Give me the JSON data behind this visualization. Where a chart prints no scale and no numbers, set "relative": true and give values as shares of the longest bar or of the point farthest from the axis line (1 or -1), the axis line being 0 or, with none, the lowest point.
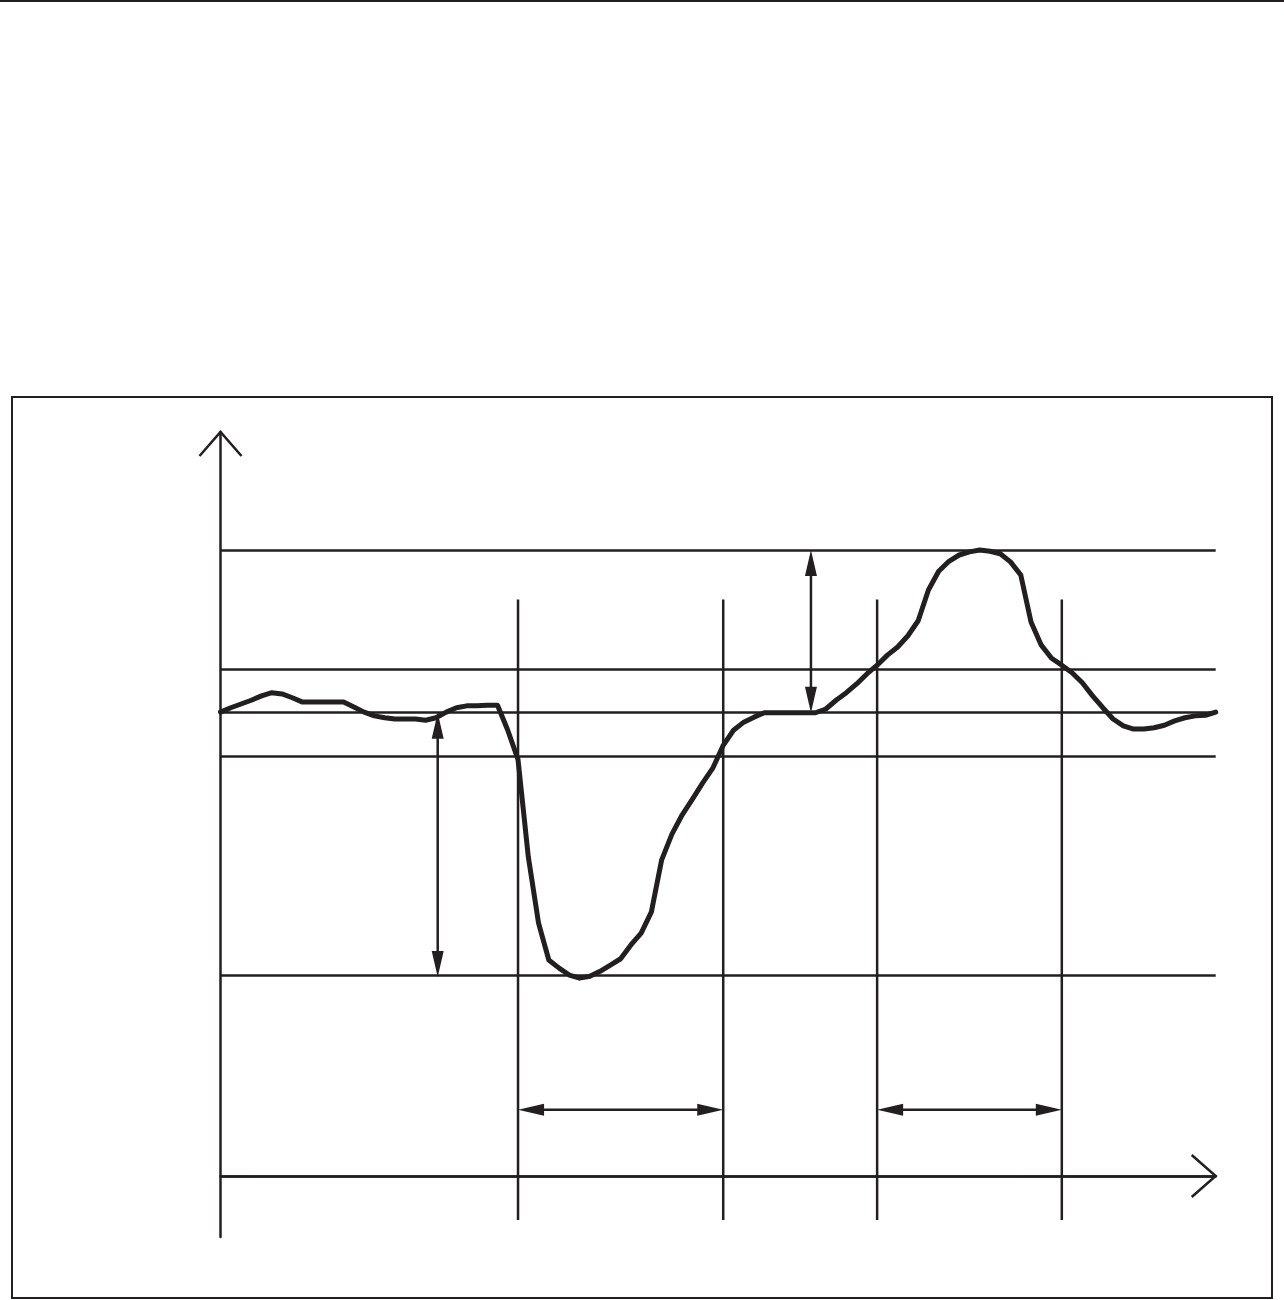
{
  "chart_data": {
    "type": "line",
    "relative": true,
    "grid": true,
    "marker": "none",
    "line_style": "solid",
    "color": "#231f20",
    "categories": [
      null,
      null,
      null,
      null,
      null,
      null,
      null,
      null,
      null,
      null,
      null,
      null,
      null,
      null,
      null,
      null,
      null,
      null,
      null,
      null,
      null,
      null,
      null,
      null,
      null,
      null,
      null,
      null,
      null,
      null,
      null,
      null,
      null,
      null,
      null,
      null,
      null,
      null,
      null,
      null,
      null,
      null,
      null,
      null,
      null,
      null,
      null,
      null,
      null,
      null,
      null,
      null,
      null,
      null,
      null,
      null,
      null,
      null,
      null,
      null,
      null,
      null,
      null,
      null,
      null,
      null,
      null,
      null,
      null,
      null,
      null,
      null,
      null,
      null,
      null,
      null,
      null,
      null,
      null,
      null,
      null,
      null,
      null,
      null,
      null,
      null,
      null,
      null,
      null,
      null,
      null,
      null,
      null,
      null,
      null,
      null,
      null,
      null
    ],
    "values": [
      0.741,
      0.748,
      0.754,
      0.76,
      0.767,
      0.772,
      0.77,
      0.764,
      0.757,
      0.757,
      0.757,
      0.757,
      0.757,
      0.749,
      0.741,
      0.735,
      0.732,
      0.73,
      0.73,
      0.73,
      0.728,
      0.732,
      0.741,
      0.748,
      0.751,
      0.751,
      0.752,
      0.752,
      0.712,
      0.665,
      0.51,
      0.404,
      0.345,
      0.332,
      0.321,
      0.316,
      0.319,
      0.327,
      0.337,
      0.347,
      0.369,
      0.388,
      0.422,
      0.505,
      0.546,
      0.577,
      0.602,
      0.628,
      0.652,
      0.688,
      0.712,
      0.725,
      0.733,
      0.74,
      0.74,
      0.74,
      0.74,
      0.74,
      0.74,
      0.746,
      0.76,
      0.772,
      0.786,
      0.802,
      0.816,
      0.832,
      0.845,
      0.863,
      0.887,
      0.936,
      0.966,
      0.982,
      0.992,
      0.997,
      1,
      0.998,
      0.994,
      0.981,
      0.96,
      0.885,
      0.848,
      0.827,
      0.816,
      0.804,
      0.788,
      0.767,
      0.748,
      0.73,
      0.719,
      0.714,
      0.714,
      0.716,
      0.72,
      0.727,
      0.732,
      0.735,
      0.736,
      0.741
    ],
    "ref_lines": [
      {
        "axis": "y",
        "value": 0.812,
        "color": "#231f20"
      },
      {
        "axis": "y",
        "value": 0.74,
        "color": "#231f20"
      },
      {
        "axis": "y",
        "value": 0.669,
        "color": "#231f20"
      },
      {
        "axis": "y",
        "value": 0.318,
        "color": "#231f20"
      }
    ]
  }
}
